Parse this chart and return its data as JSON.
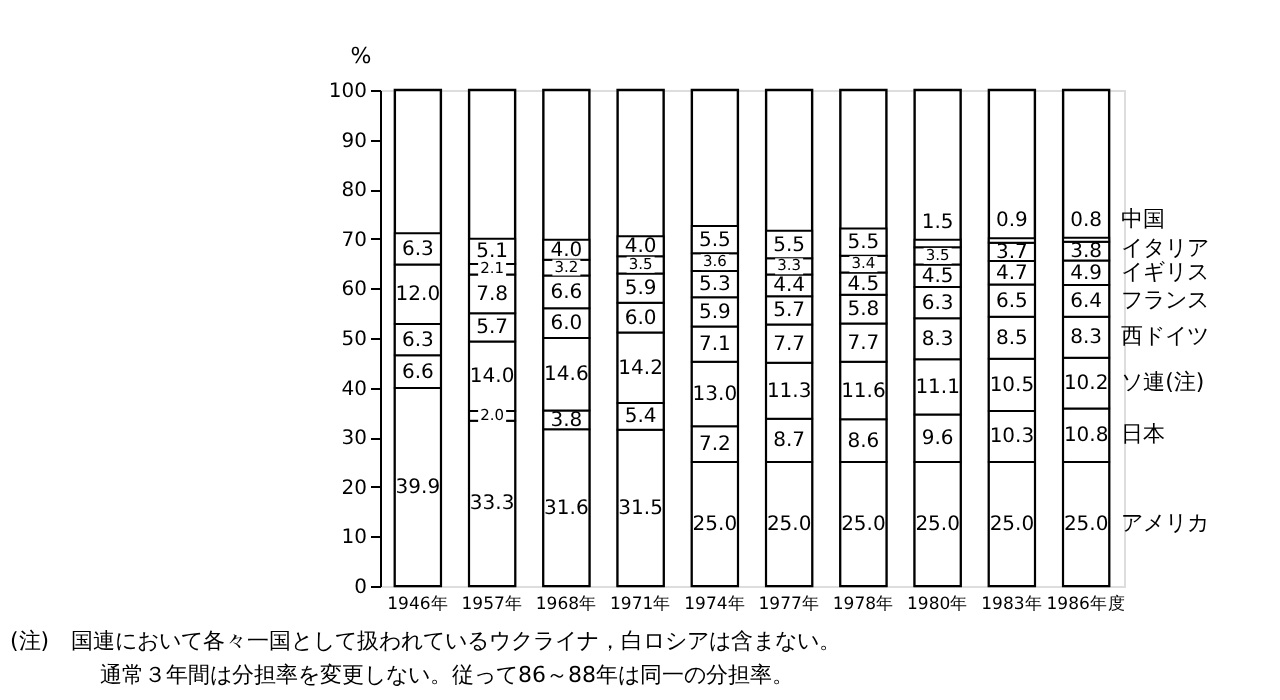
{
  "chart_data": {
    "type": "bar",
    "stacked": true,
    "ylabel": "%",
    "categories": [
      "1946年",
      "1957年",
      "1968年",
      "1971年",
      "1974年",
      "1977年",
      "1978年",
      "1980年",
      "1983年",
      "1986年度"
    ],
    "series": [
      {
        "name": "アメリカ",
        "color": "#ffffff",
        "values": [
          39.9,
          33.3,
          31.6,
          31.5,
          25.0,
          25.0,
          25.0,
          25.0,
          25.0,
          25.0
        ],
        "value_labels": [
          "39.9",
          "33.3",
          "31.6",
          "31.5",
          "25.0",
          "25.0",
          "25.0",
          "25.0",
          "25.0",
          "25.0"
        ]
      },
      {
        "name": "日本",
        "color": "#ffffff",
        "values": [
          null,
          2.0,
          3.8,
          5.4,
          7.2,
          8.7,
          8.6,
          9.6,
          10.3,
          10.8
        ],
        "value_labels": [
          null,
          "2.0",
          "3.8",
          "5.4",
          "7.2",
          "8.7",
          "8.6",
          "9.6",
          "10.3",
          "10.8"
        ]
      },
      {
        "name": "ソ連(注)",
        "color": "#ffffff",
        "values": [
          6.6,
          14.0,
          14.6,
          14.2,
          13.0,
          11.3,
          11.6,
          11.1,
          10.5,
          10.2
        ],
        "value_labels": [
          "6.6",
          "14.0",
          "14.6",
          "14.2",
          "13.0",
          "11.3",
          "11.6",
          "11.1",
          "10.5",
          "10.2"
        ]
      },
      {
        "name": "西ドイツ",
        "color": "#ffffff",
        "values": [
          null,
          null,
          null,
          null,
          7.1,
          7.7,
          7.7,
          8.3,
          8.5,
          8.3
        ],
        "value_labels": [
          null,
          null,
          null,
          null,
          "7.1",
          "7.7",
          "7.7",
          "8.3",
          "8.5",
          "8.3"
        ]
      },
      {
        "name": "フランス",
        "color": "#ffffff",
        "values": [
          6.3,
          5.7,
          6.0,
          6.0,
          5.9,
          5.7,
          5.8,
          6.3,
          6.5,
          6.4
        ],
        "value_labels": [
          "6.3",
          "5.7",
          "6.0",
          "6.0",
          "5.9",
          "5.7",
          "5.8",
          "6.3",
          "6.5",
          "6.4"
        ]
      },
      {
        "name": "イギリス",
        "color": "#ffffff",
        "values": [
          12.0,
          7.8,
          6.6,
          5.9,
          5.3,
          4.4,
          4.5,
          4.5,
          4.7,
          4.9
        ],
        "value_labels": [
          "12.0",
          "7.8",
          "6.6",
          "5.9",
          "5.3",
          "4.4",
          "4.5",
          "4.5",
          "4.7",
          "4.9"
        ]
      },
      {
        "name": "イタリア",
        "color": "#ffffff",
        "values": [
          null,
          2.1,
          3.2,
          3.5,
          3.6,
          3.3,
          3.4,
          3.5,
          3.7,
          3.8
        ],
        "value_labels": [
          null,
          "2.1",
          "3.2",
          "3.5",
          "3.6",
          "3.3",
          "3.4",
          "3.5",
          "3.7",
          "3.8"
        ]
      },
      {
        "name": "中国",
        "color": "#ffffff",
        "values": [
          6.3,
          5.1,
          4.0,
          4.0,
          5.5,
          5.5,
          5.5,
          1.5,
          0.9,
          0.8
        ],
        "value_labels": [
          "6.3",
          "5.1",
          "4.0",
          "4.0",
          "5.5",
          "5.5",
          "5.5",
          "1.5",
          "0.9",
          "0.8"
        ]
      }
    ],
    "ylim": [
      0,
      100
    ],
    "yticks": [
      0,
      10,
      20,
      30,
      40,
      50,
      60,
      70,
      80,
      90,
      100
    ],
    "legend": "right",
    "grid": false,
    "annotations": [
      "(注)　国連において各々一国として扱われているウクライナ，白ロシアは含まない。",
      "通常３年間は分担率を変更しない。従って86～88年は同一の分担率。"
    ]
  }
}
